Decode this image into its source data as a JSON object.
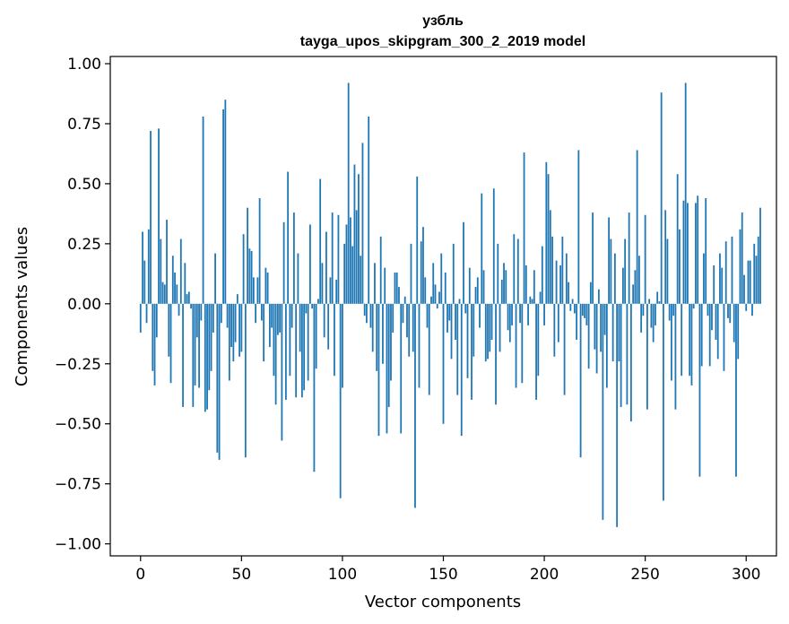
{
  "chart_data": {
    "type": "bar",
    "title_line1": "узбль",
    "title_line2": "tayga_upos_skipgram_300_2_2019 model",
    "xlabel": "Vector components",
    "ylabel": "Components values",
    "xlim": [
      -15,
      315
    ],
    "ylim": [
      -1.05,
      1.03
    ],
    "xticks": [
      0,
      50,
      100,
      150,
      200,
      250,
      300
    ],
    "xtick_labels": [
      "0",
      "50",
      "100",
      "150",
      "200",
      "250",
      "300"
    ],
    "yticks": [
      1.0,
      0.75,
      0.5,
      0.25,
      0.0,
      -0.25,
      -0.5,
      -0.75,
      -1.0
    ],
    "ytick_labels": [
      "1.00",
      "0.75",
      "0.50",
      "0.25",
      "0.00",
      "−0.25",
      "−0.50",
      "−0.75",
      "−1.00"
    ],
    "grid": false,
    "color": "#1f77b4",
    "values": [
      -0.12,
      0.3,
      0.18,
      -0.08,
      0.31,
      0.72,
      -0.28,
      -0.34,
      -0.14,
      0.73,
      0.27,
      0.09,
      0.08,
      0.35,
      -0.22,
      -0.33,
      0.2,
      0.13,
      0.08,
      -0.05,
      0.27,
      -0.43,
      0.17,
      0.04,
      0.05,
      -0.02,
      -0.43,
      -0.34,
      -0.14,
      -0.35,
      -0.07,
      0.78,
      -0.45,
      -0.44,
      -0.36,
      -0.28,
      -0.12,
      0.21,
      -0.62,
      -0.65,
      -0.08,
      0.81,
      0.85,
      -0.1,
      -0.32,
      -0.18,
      -0.24,
      -0.16,
      0.04,
      -0.22,
      -0.2,
      0.29,
      -0.64,
      0.4,
      0.23,
      0.22,
      0.11,
      -0.08,
      0.11,
      0.44,
      -0.07,
      -0.24,
      0.15,
      0.13,
      -0.18,
      -0.1,
      -0.3,
      -0.42,
      -0.13,
      -0.12,
      -0.57,
      0.34,
      -0.4,
      0.55,
      -0.3,
      -0.1,
      0.38,
      -0.39,
      0.21,
      -0.2,
      -0.39,
      -0.36,
      -0.04,
      -0.32,
      0.33,
      -0.02,
      -0.7,
      -0.27,
      0.02,
      0.52,
      0.17,
      -0.14,
      0.3,
      -0.19,
      0.11,
      0.38,
      -0.3,
      0.1,
      0.37,
      -0.81,
      -0.35,
      0.25,
      0.33,
      0.92,
      0.36,
      0.24,
      0.58,
      0.39,
      0.54,
      0.2,
      0.67,
      -0.05,
      -0.08,
      0.78,
      -0.1,
      -0.2,
      0.17,
      -0.28,
      -0.55,
      0.28,
      -0.25,
      0.15,
      -0.54,
      -0.43,
      -0.32,
      -0.12,
      0.13,
      0.13,
      0.07,
      -0.54,
      -0.08,
      0.03,
      -0.14,
      -0.22,
      0.25,
      -0.2,
      -0.85,
      0.53,
      -0.35,
      0.26,
      0.32,
      0.11,
      -0.1,
      -0.38,
      0.03,
      0.17,
      0.08,
      -0.02,
      0.05,
      0.21,
      -0.5,
      0.13,
      -0.12,
      -0.07,
      -0.23,
      0.25,
      -0.15,
      -0.38,
      0.02,
      -0.55,
      0.34,
      -0.04,
      -0.31,
      0.15,
      -0.4,
      -0.22,
      0.07,
      0.11,
      -0.1,
      0.46,
      0.14,
      -0.24,
      -0.23,
      -0.2,
      -0.15,
      0.48,
      -0.42,
      0.25,
      -0.2,
      0.1,
      0.17,
      0.14,
      -0.11,
      -0.16,
      -0.09,
      0.29,
      -0.35,
      0.27,
      -0.08,
      -0.33,
      0.63,
      0.16,
      -0.09,
      0.03,
      0.02,
      0.14,
      -0.4,
      -0.3,
      0.05,
      0.24,
      -0.09,
      0.59,
      0.54,
      0.39,
      0.28,
      -0.22,
      0.18,
      -0.16,
      0.16,
      0.28,
      -0.38,
      0.21,
      0.09,
      -0.03,
      0.02,
      -0.04,
      -0.15,
      0.64,
      -0.64,
      -0.05,
      -0.06,
      -0.09,
      -0.27,
      0.09,
      0.38,
      -0.19,
      -0.29,
      0.06,
      -0.2,
      -0.9,
      -0.13,
      -0.35,
      0.36,
      0.27,
      -0.24,
      0.21,
      -0.93,
      -0.24,
      -0.43,
      0.15,
      0.27,
      -0.42,
      0.38,
      -0.49,
      0.08,
      0.14,
      0.64,
      0.2,
      -0.12,
      -0.05,
      0.37,
      -0.44,
      0.02,
      -0.1,
      -0.16,
      -0.09,
      0.05,
      0.01,
      0.88,
      -0.82,
      0.39,
      0.27,
      -0.07,
      -0.32,
      -0.05,
      -0.44,
      0.54,
      0.31,
      -0.3,
      0.43,
      0.92,
      0.42,
      -0.3,
      -0.34,
      -0.02,
      0.42,
      0.45,
      -0.72,
      -0.26,
      0.21,
      0.44,
      -0.05,
      -0.26,
      -0.11,
      0.16,
      -0.15,
      -0.23,
      0.21,
      0.15,
      -0.28,
      0.26,
      -0.06,
      -0.08,
      0.28,
      -0.16,
      -0.72,
      -0.23,
      0.31,
      0.38,
      0.12,
      -0.03,
      0.18,
      0.18,
      -0.05,
      0.25,
      0.2,
      0.28,
      0.4
    ]
  }
}
